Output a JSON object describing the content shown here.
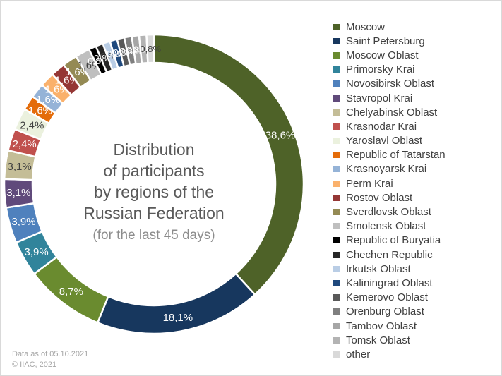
{
  "chart_data": {
    "type": "donut",
    "title_lines": [
      "Distribution",
      "of participants",
      "by regions of the",
      "Russian Federation"
    ],
    "subtitle": "(for the last 45 days)",
    "legend_placement": "right",
    "slices": [
      {
        "name": "Moscow",
        "value": 38.6,
        "label": "38,6%",
        "color": "#4e6228"
      },
      {
        "name": "Saint Petersburg",
        "value": 18.1,
        "label": "18,1%",
        "color": "#17375e"
      },
      {
        "name": "Moscow Oblast",
        "value": 8.7,
        "label": "8,7%",
        "color": "#6a8b2f"
      },
      {
        "name": "Primorsky Krai",
        "value": 3.9,
        "label": "3,9%",
        "color": "#31849b"
      },
      {
        "name": "Novosibirsk Oblast",
        "value": 3.9,
        "label": "3,9%",
        "color": "#4f81bd"
      },
      {
        "name": "Stavropol Krai",
        "value": 3.1,
        "label": "3,1%",
        "color": "#604a7b"
      },
      {
        "name": "Chelyabinsk Oblast",
        "value": 3.1,
        "label": "3,1%",
        "color": "#c4bd97"
      },
      {
        "name": "Krasnodar Krai",
        "value": 2.4,
        "label": "2,4%",
        "color": "#c0504d"
      },
      {
        "name": "Yaroslavl Oblast",
        "value": 2.4,
        "label": "2,4%",
        "color": "#ebf1de"
      },
      {
        "name": "Republic of Tatarstan",
        "value": 1.6,
        "label": "1,6%",
        "color": "#e46c0a"
      },
      {
        "name": "Krasnoyarsk Krai",
        "value": 1.6,
        "label": "1,6%",
        "color": "#95b3d7"
      },
      {
        "name": "Perm Krai",
        "value": 1.6,
        "label": "1,6%",
        "color": "#fab16c"
      },
      {
        "name": "Rostov Oblast",
        "value": 1.6,
        "label": "1,6%",
        "color": "#953735"
      },
      {
        "name": "Sverdlovsk Oblast",
        "value": 1.6,
        "label": "1,6%",
        "color": "#948a54"
      },
      {
        "name": "Smolensk Oblast",
        "value": 1.6,
        "label": "1,6%",
        "color": "#bfbfbf"
      },
      {
        "name": "Republic of Buryatia",
        "value": 0.8,
        "label": "0,8%",
        "color": "#000000"
      },
      {
        "name": "Chechen Republic",
        "value": 0.8,
        "label": "0,8%",
        "color": "#262626"
      },
      {
        "name": "Irkutsk Oblast",
        "value": 0.8,
        "label": "0,8%",
        "color": "#b9cde5"
      },
      {
        "name": "Kaliningrad Oblast",
        "value": 0.8,
        "label": "0,8%",
        "color": "#1f497d"
      },
      {
        "name": "Kemerovo Oblast",
        "value": 0.8,
        "label": "0,8%",
        "color": "#595959"
      },
      {
        "name": "Orenburg Oblast",
        "value": 0.8,
        "label": "0,8%",
        "color": "#7f7f7f"
      },
      {
        "name": "Tambov Oblast",
        "value": 0.8,
        "label": "0,8%",
        "color": "#a6a6a6"
      },
      {
        "name": "Tomsk Oblast",
        "value": 0.8,
        "label": "0,8%",
        "color": "#b3b3b3"
      },
      {
        "name": "other",
        "value": 0.8,
        "label": "0,8%",
        "color": "#d9d9d9"
      }
    ]
  },
  "footer": {
    "line1": "Data as of 05.10.2021",
    "line2": "© IIAC, 2021"
  }
}
